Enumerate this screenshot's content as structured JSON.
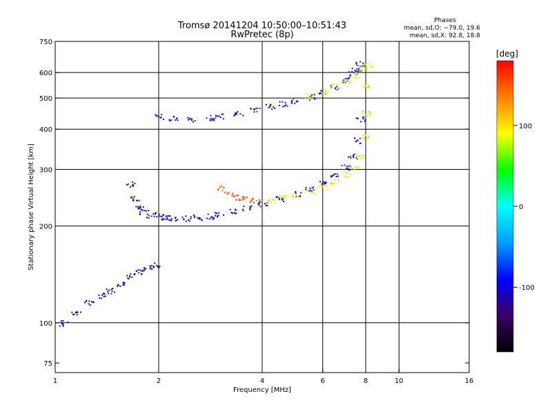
{
  "chart_data": {
    "type": "scatter",
    "title": "Tromsø 20141204 10:50:00–10:51:43",
    "subtitle": "RwPretec (8p)",
    "stats": {
      "heading": "Phases",
      "line1": "mean, sd,O: −79.0, 19.6",
      "line2": "mean, sd,X:  92.8, 18.8"
    },
    "xlabel": "Frequency [MHz]",
    "ylabel": "Stationary phase Virtual Height [km]",
    "x_scale": "log",
    "y_scale": "log",
    "xlim": [
      1,
      16
    ],
    "ylim": [
      70,
      750
    ],
    "x_ticks": [
      1,
      2,
      4,
      6,
      8,
      10,
      16
    ],
    "y_ticks": [
      75,
      100,
      200,
      300,
      400,
      500,
      600,
      750
    ],
    "x_gridlines": [
      2,
      4,
      6,
      8,
      10
    ],
    "y_gridlines": [
      100,
      200,
      300,
      400,
      500,
      600
    ],
    "grid": true,
    "colorbar": {
      "label": "[deg]",
      "range": [
        -180,
        180
      ],
      "ticks": [
        100,
        0,
        -100
      ],
      "colormap": [
        "#000000",
        "#3c0064",
        "#0000ff",
        "#00a0ff",
        "#00ffff",
        "#00ff00",
        "#ffff00",
        "#ff8000",
        "#ff0000"
      ]
    },
    "series": [
      {
        "trace": "o-mode-F-lower",
        "phase_deg": -95,
        "x": [
          1.65,
          1.7,
          1.75,
          1.8,
          1.9,
          2.0,
          2.1,
          2.2,
          2.4,
          2.6,
          2.8,
          3.0,
          3.3,
          3.6,
          4.0,
          4.5,
          5.0,
          5.5,
          6.0,
          6.5,
          7.0,
          7.3,
          7.5,
          7.7
        ],
        "y": [
          270,
          245,
          230,
          222,
          217,
          214,
          213,
          212,
          212,
          213,
          215,
          218,
          222,
          228,
          235,
          243,
          252,
          262,
          273,
          287,
          305,
          330,
          370,
          430
        ]
      },
      {
        "trace": "o-mode-F-upper",
        "phase_deg": -90,
        "x": [
          2.0,
          2.2,
          2.5,
          2.8,
          3.0,
          3.4,
          3.8,
          4.2,
          4.6,
          5.0,
          5.5,
          6.0,
          6.5,
          7.0,
          7.3,
          7.5,
          7.7
        ],
        "y": [
          440,
          432,
          430,
          435,
          440,
          450,
          460,
          470,
          480,
          490,
          505,
          520,
          540,
          570,
          600,
          620,
          640
        ]
      },
      {
        "trace": "o-mode-E-region",
        "phase_deg": -110,
        "x": [
          1.05,
          1.15,
          1.25,
          1.35,
          1.45,
          1.55,
          1.65,
          1.75,
          1.85,
          1.95
        ],
        "y": [
          100,
          108,
          116,
          122,
          126,
          132,
          140,
          145,
          148,
          152
        ]
      },
      {
        "trace": "x-mode-F-lower",
        "phase_deg": 95,
        "x": [
          4.2,
          4.6,
          5.0,
          5.5,
          6.0,
          6.5,
          7.0,
          7.4,
          7.7,
          7.9,
          8.0,
          8.1,
          8.1
        ],
        "y": [
          240,
          245,
          250,
          257,
          265,
          275,
          290,
          305,
          330,
          380,
          450,
          550,
          640
        ]
      },
      {
        "trace": "x-mode-F-upper",
        "phase_deg": 90,
        "x": [
          5.5,
          6.0,
          6.5,
          7.0,
          7.4,
          7.8
        ],
        "y": [
          510,
          525,
          545,
          565,
          590,
          620
        ]
      },
      {
        "trace": "oblique-echo",
        "phase_deg": 150,
        "x": [
          3.0,
          3.2,
          3.4,
          3.6,
          3.8
        ],
        "y": [
          262,
          252,
          246,
          243,
          241
        ]
      }
    ]
  }
}
